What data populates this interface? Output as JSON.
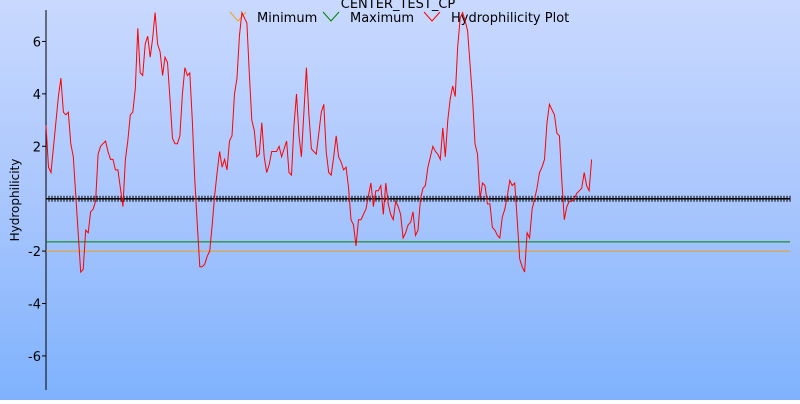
{
  "chart_data": {
    "type": "line",
    "title": "CENTER_TEST_CP",
    "xlabel": "",
    "ylabel": "Hydrophilicity",
    "ylim": [
      -7.3,
      7.2
    ],
    "xlim": [
      0,
      300
    ],
    "grid": false,
    "legend_position": "top",
    "yticks": [
      {
        "value": 6,
        "label": "6"
      },
      {
        "value": 4,
        "label": "4"
      },
      {
        "value": 2,
        "label": "2"
      },
      {
        "value": -2,
        "label": "-2"
      },
      {
        "value": -4,
        "label": "-4"
      },
      {
        "value": -6,
        "label": "-6"
      }
    ],
    "series": [
      {
        "name": "Minimum",
        "color": "#f0a020",
        "type": "hline",
        "value": -2.0
      },
      {
        "name": "Maximum",
        "color": "#008000",
        "type": "hline",
        "value": -1.65
      },
      {
        "name": "Hydrophilicity Plot",
        "color": "#ff0000",
        "type": "line",
        "points": [
          [
            0,
            2.8
          ],
          [
            1,
            1.2
          ],
          [
            2,
            1.0
          ],
          [
            5,
            3.9
          ],
          [
            6,
            4.6
          ],
          [
            7,
            3.3
          ],
          [
            8,
            3.2
          ],
          [
            9,
            3.3
          ],
          [
            10,
            2.1
          ],
          [
            11,
            1.6
          ],
          [
            12,
            0.1
          ],
          [
            14,
            -2.8
          ],
          [
            15,
            -2.7
          ],
          [
            16,
            -1.2
          ],
          [
            17,
            -1.3
          ],
          [
            18,
            -0.5
          ],
          [
            19,
            -0.4
          ],
          [
            20,
            -0.1
          ],
          [
            21,
            1.7
          ],
          [
            22,
            2.0
          ],
          [
            23,
            2.1
          ],
          [
            24,
            2.2
          ],
          [
            25,
            1.8
          ],
          [
            26,
            1.5
          ],
          [
            27,
            1.5
          ],
          [
            28,
            1.1
          ],
          [
            29,
            1.1
          ],
          [
            30,
            0.4
          ],
          [
            31,
            -0.3
          ],
          [
            32,
            1.5
          ],
          [
            33,
            2.2
          ],
          [
            34,
            3.2
          ],
          [
            35,
            3.3
          ],
          [
            36,
            4.2
          ],
          [
            37,
            6.5
          ],
          [
            38,
            4.8
          ],
          [
            39,
            4.7
          ],
          [
            40,
            5.9
          ],
          [
            41,
            6.2
          ],
          [
            42,
            5.4
          ],
          [
            43,
            6.1
          ],
          [
            44,
            7.1
          ],
          [
            45,
            5.9
          ],
          [
            46,
            5.6
          ],
          [
            47,
            4.7
          ],
          [
            48,
            5.4
          ],
          [
            49,
            5.2
          ],
          [
            50,
            3.8
          ],
          [
            51,
            2.3
          ],
          [
            52,
            2.1
          ],
          [
            53,
            2.1
          ],
          [
            54,
            2.4
          ],
          [
            55,
            4.0
          ],
          [
            56,
            5.0
          ],
          [
            57,
            4.7
          ],
          [
            58,
            4.8
          ],
          [
            59,
            3.0
          ],
          [
            60,
            0.7
          ],
          [
            61,
            -1.0
          ],
          [
            62,
            -2.6
          ],
          [
            63,
            -2.6
          ],
          [
            64,
            -2.5
          ],
          [
            65,
            -2.2
          ],
          [
            66,
            -2.0
          ],
          [
            67,
            -1.0
          ],
          [
            68,
            0.1
          ],
          [
            69,
            1.0
          ],
          [
            70,
            1.8
          ],
          [
            71,
            1.2
          ],
          [
            72,
            1.5
          ],
          [
            73,
            1.1
          ],
          [
            74,
            2.2
          ],
          [
            75,
            2.4
          ],
          [
            76,
            4.0
          ],
          [
            77,
            4.6
          ],
          [
            78,
            6.2
          ],
          [
            79,
            7.1
          ],
          [
            80,
            6.9
          ],
          [
            81,
            6.7
          ],
          [
            82,
            4.7
          ],
          [
            83,
            3.0
          ],
          [
            84,
            2.6
          ],
          [
            85,
            1.6
          ],
          [
            86,
            1.7
          ],
          [
            87,
            2.9
          ],
          [
            88,
            1.6
          ],
          [
            89,
            1.0
          ],
          [
            90,
            1.3
          ],
          [
            91,
            1.8
          ],
          [
            92,
            1.8
          ],
          [
            93,
            1.8
          ],
          [
            94,
            2.0
          ],
          [
            95,
            1.6
          ],
          [
            96,
            1.9
          ],
          [
            97,
            2.2
          ],
          [
            98,
            1.0
          ],
          [
            99,
            0.9
          ],
          [
            100,
            2.8
          ],
          [
            101,
            4.0
          ],
          [
            102,
            2.4
          ],
          [
            103,
            1.6
          ],
          [
            104,
            3.3
          ],
          [
            105,
            5.0
          ],
          [
            106,
            3.2
          ],
          [
            107,
            1.9
          ],
          [
            108,
            1.8
          ],
          [
            109,
            1.7
          ],
          [
            110,
            2.5
          ],
          [
            111,
            3.3
          ],
          [
            112,
            3.6
          ],
          [
            113,
            1.8
          ],
          [
            114,
            1.0
          ],
          [
            115,
            0.9
          ],
          [
            116,
            1.6
          ],
          [
            117,
            2.4
          ],
          [
            118,
            1.6
          ],
          [
            119,
            1.4
          ],
          [
            120,
            1.1
          ],
          [
            121,
            1.2
          ],
          [
            122,
            0.4
          ],
          [
            123,
            -0.8
          ],
          [
            124,
            -1.0
          ],
          [
            125,
            -1.8
          ],
          [
            126,
            -0.8
          ],
          [
            127,
            -0.8
          ],
          [
            128,
            -0.6
          ],
          [
            129,
            -0.4
          ],
          [
            130,
            0.1
          ],
          [
            131,
            0.6
          ],
          [
            132,
            -0.3
          ],
          [
            133,
            0.3
          ],
          [
            134,
            0.3
          ],
          [
            135,
            0.5
          ],
          [
            136,
            -0.6
          ],
          [
            137,
            0.6
          ],
          [
            138,
            -0.2
          ],
          [
            139,
            -0.6
          ],
          [
            140,
            -0.8
          ],
          [
            141,
            -0.1
          ],
          [
            142,
            -0.3
          ],
          [
            143,
            -0.6
          ],
          [
            144,
            -1.5
          ],
          [
            145,
            -1.3
          ],
          [
            146,
            -1.0
          ],
          [
            147,
            -0.9
          ],
          [
            148,
            -0.5
          ],
          [
            149,
            -1.4
          ],
          [
            150,
            -1.2
          ],
          [
            151,
            0.0
          ],
          [
            152,
            0.4
          ],
          [
            153,
            0.5
          ],
          [
            154,
            1.2
          ],
          [
            155,
            1.6
          ],
          [
            156,
            2.0
          ],
          [
            157,
            1.8
          ],
          [
            158,
            1.7
          ],
          [
            159,
            1.5
          ],
          [
            160,
            2.7
          ],
          [
            161,
            1.6
          ],
          [
            162,
            3.0
          ],
          [
            163,
            3.8
          ],
          [
            164,
            4.3
          ],
          [
            165,
            3.9
          ],
          [
            166,
            5.8
          ],
          [
            167,
            6.9
          ],
          [
            168,
            7.1
          ],
          [
            169,
            6.8
          ],
          [
            170,
            6.4
          ],
          [
            171,
            5.1
          ],
          [
            172,
            3.8
          ],
          [
            173,
            2.1
          ],
          [
            174,
            1.7
          ],
          [
            175,
            0.0
          ],
          [
            176,
            0.6
          ],
          [
            177,
            0.5
          ],
          [
            178,
            -0.2
          ],
          [
            179,
            -0.2
          ],
          [
            180,
            -1.1
          ],
          [
            181,
            -1.2
          ],
          [
            182,
            -1.4
          ],
          [
            183,
            -1.5
          ],
          [
            184,
            -0.7
          ],
          [
            185,
            -0.4
          ],
          [
            186,
            0.1
          ],
          [
            187,
            0.7
          ],
          [
            188,
            0.5
          ],
          [
            189,
            0.6
          ],
          [
            190,
            -0.8
          ],
          [
            191,
            -2.3
          ],
          [
            192,
            -2.6
          ],
          [
            193,
            -2.8
          ],
          [
            194,
            -1.3
          ],
          [
            195,
            -1.5
          ],
          [
            196,
            -0.4
          ],
          [
            197,
            0.0
          ],
          [
            198,
            0.4
          ],
          [
            199,
            1.0
          ],
          [
            200,
            1.2
          ],
          [
            201,
            1.5
          ],
          [
            202,
            2.9
          ],
          [
            203,
            3.6
          ],
          [
            204,
            3.4
          ],
          [
            205,
            3.2
          ],
          [
            206,
            2.5
          ],
          [
            207,
            2.4
          ],
          [
            208,
            0.7
          ],
          [
            209,
            -0.8
          ],
          [
            210,
            -0.3
          ],
          [
            211,
            -0.1
          ],
          [
            212,
            -0.1
          ],
          [
            213,
            0.0
          ],
          [
            214,
            0.2
          ],
          [
            215,
            0.3
          ],
          [
            216,
            0.4
          ],
          [
            217,
            1.0
          ],
          [
            218,
            0.5
          ],
          [
            219,
            0.3
          ],
          [
            220,
            1.5
          ]
        ]
      }
    ]
  }
}
